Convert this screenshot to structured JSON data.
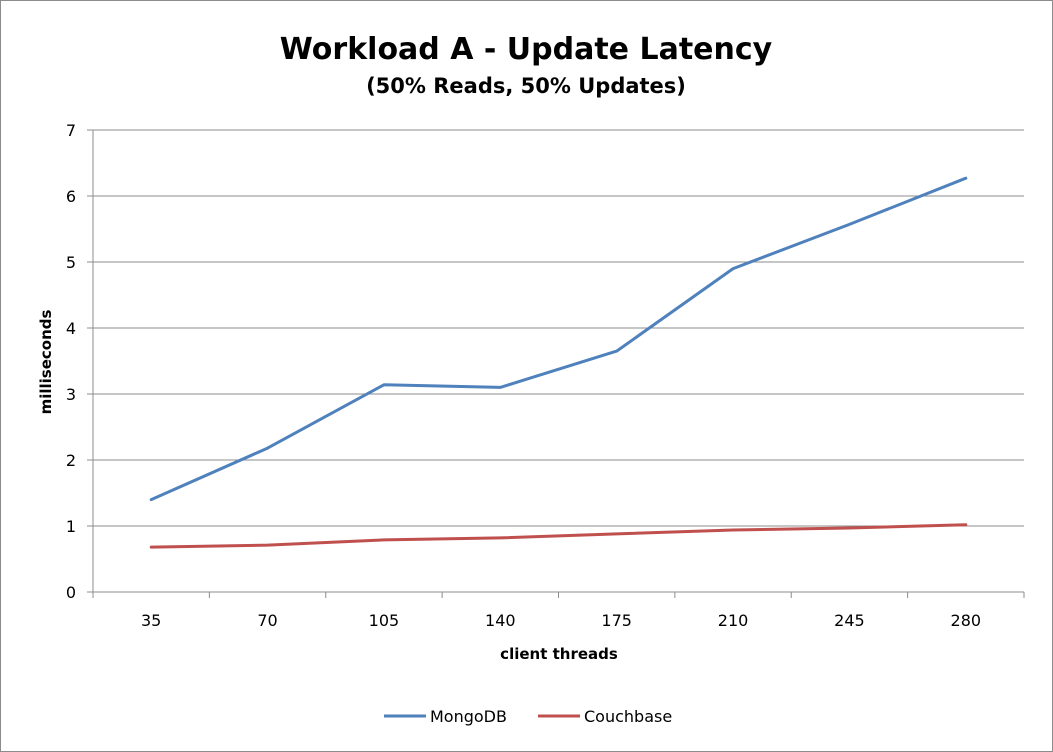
{
  "chart_data": {
    "type": "line",
    "title": "Workload A - Update Latency",
    "subtitle": "(50% Reads, 50% Updates)",
    "xlabel": "client threads",
    "ylabel": "milliseconds",
    "categories": [
      "35",
      "70",
      "105",
      "140",
      "175",
      "210",
      "245",
      "280"
    ],
    "y_ticks": [
      "0",
      "1",
      "2",
      "3",
      "4",
      "5",
      "6",
      "7"
    ],
    "ylim": [
      0,
      7
    ],
    "grid": true,
    "legend_position": "bottom",
    "series": [
      {
        "name": "MongoDB",
        "color": "#4f81bd",
        "values": [
          1.4,
          2.18,
          3.14,
          3.1,
          3.65,
          4.9,
          5.57,
          6.27
        ]
      },
      {
        "name": "Couchbase",
        "color": "#c0504d",
        "values": [
          0.68,
          0.71,
          0.79,
          0.82,
          0.88,
          0.94,
          0.97,
          1.02
        ]
      }
    ]
  }
}
